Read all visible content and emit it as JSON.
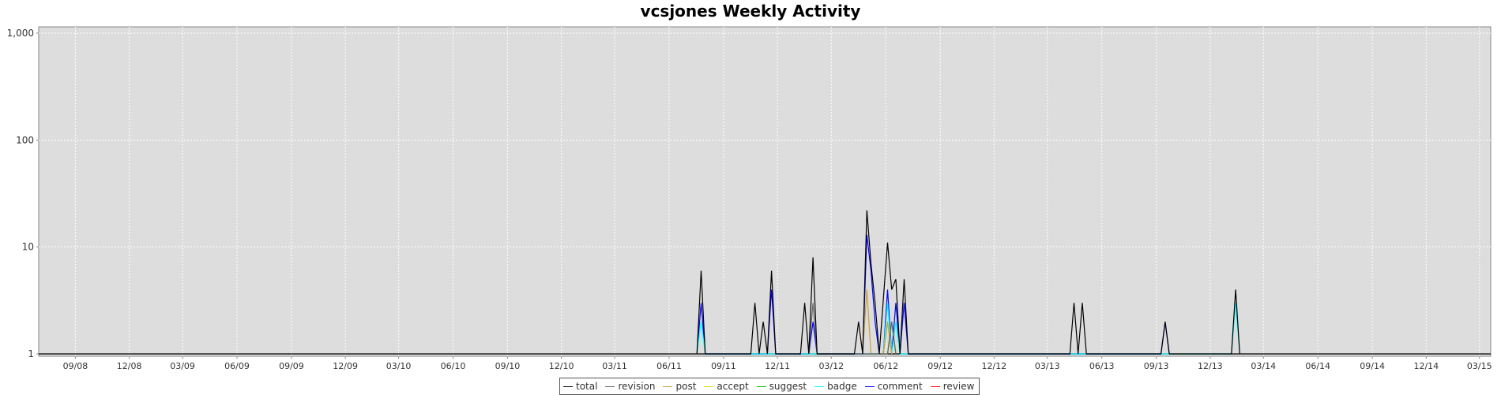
{
  "chart_data": {
    "type": "line",
    "title": "vcsjones Weekly Activity",
    "xlabel": "",
    "ylabel": "",
    "y_scale": "log",
    "ylim": [
      1,
      1000
    ],
    "y_ticks": [
      1,
      10,
      100,
      1000
    ],
    "y_tick_labels": [
      "1",
      "10",
      "100",
      "1,000"
    ],
    "xlim": [
      "2008-07-01",
      "2015-03-20"
    ],
    "x_ticks": [
      "2008-09-01",
      "2008-12-01",
      "2009-03-01",
      "2009-06-01",
      "2009-09-01",
      "2009-12-01",
      "2010-03-01",
      "2010-06-01",
      "2010-09-01",
      "2010-12-01",
      "2011-03-01",
      "2011-06-01",
      "2011-09-01",
      "2011-12-01",
      "2012-03-01",
      "2012-06-01",
      "2012-09-01",
      "2012-12-01",
      "2013-03-01",
      "2013-06-01",
      "2013-09-01",
      "2013-12-01",
      "2014-03-01",
      "2014-06-01",
      "2014-09-01",
      "2014-12-01",
      "2015-03-01"
    ],
    "x_tick_labels": [
      "09/08",
      "12/08",
      "03/09",
      "06/09",
      "09/09",
      "12/09",
      "03/10",
      "06/10",
      "09/10",
      "12/10",
      "03/11",
      "06/11",
      "09/11",
      "12/11",
      "03/12",
      "06/12",
      "09/12",
      "12/12",
      "03/13",
      "06/13",
      "09/13",
      "12/13",
      "03/14",
      "06/14",
      "09/14",
      "12/14",
      "03/15"
    ],
    "grid": true,
    "legend_position": "bottom-center",
    "background_color": "#dddddd",
    "series": [
      {
        "name": "total",
        "color": "#000000",
        "points": [
          [
            "2011-07-18",
            1
          ],
          [
            "2011-07-25",
            6
          ],
          [
            "2011-08-01",
            1
          ],
          [
            "2011-10-17",
            1
          ],
          [
            "2011-10-24",
            3
          ],
          [
            "2011-10-31",
            1
          ],
          [
            "2011-11-07",
            2
          ],
          [
            "2011-11-14",
            1
          ],
          [
            "2011-11-21",
            6
          ],
          [
            "2011-11-28",
            1
          ],
          [
            "2012-01-09",
            1
          ],
          [
            "2012-01-16",
            3
          ],
          [
            "2012-01-23",
            1
          ],
          [
            "2012-01-30",
            8
          ],
          [
            "2012-02-06",
            1
          ],
          [
            "2012-04-09",
            1
          ],
          [
            "2012-04-16",
            2
          ],
          [
            "2012-04-23",
            1
          ],
          [
            "2012-04-30",
            22
          ],
          [
            "2012-05-07",
            7
          ],
          [
            "2012-05-14",
            3
          ],
          [
            "2012-05-21",
            1
          ],
          [
            "2012-06-04",
            11
          ],
          [
            "2012-06-11",
            4
          ],
          [
            "2012-06-18",
            5
          ],
          [
            "2012-06-25",
            1
          ],
          [
            "2012-07-02",
            5
          ],
          [
            "2012-07-09",
            1
          ],
          [
            "2013-04-08",
            1
          ],
          [
            "2013-04-15",
            3
          ],
          [
            "2013-04-22",
            1
          ],
          [
            "2013-04-29",
            3
          ],
          [
            "2013-05-06",
            1
          ],
          [
            "2013-09-09",
            1
          ],
          [
            "2013-09-16",
            2
          ],
          [
            "2013-09-23",
            1
          ],
          [
            "2014-01-06",
            1
          ],
          [
            "2014-01-13",
            4
          ],
          [
            "2014-01-20",
            1
          ]
        ]
      },
      {
        "name": "revision",
        "color": "#666666",
        "points": [
          [
            "2012-01-23",
            1
          ],
          [
            "2012-01-30",
            3
          ],
          [
            "2012-02-06",
            1
          ],
          [
            "2012-06-04",
            1
          ],
          [
            "2012-06-11",
            2
          ],
          [
            "2012-06-18",
            1
          ]
        ]
      },
      {
        "name": "post",
        "color": "#c8a040",
        "points": [
          [
            "2012-04-23",
            1
          ],
          [
            "2012-04-30",
            4
          ],
          [
            "2012-05-07",
            1
          ],
          [
            "2012-05-28",
            1
          ],
          [
            "2012-06-04",
            2
          ],
          [
            "2012-06-11",
            1
          ]
        ]
      },
      {
        "name": "accept",
        "color": "#e0e000",
        "points": [
          [
            "2012-05-28",
            1
          ],
          [
            "2012-06-04",
            2
          ],
          [
            "2012-06-11",
            1
          ]
        ]
      },
      {
        "name": "suggest",
        "color": "#00c000",
        "points": [
          [
            "2012-06-04",
            1
          ],
          [
            "2012-06-11",
            2
          ],
          [
            "2012-06-18",
            1
          ]
        ]
      },
      {
        "name": "badge",
        "color": "#00ffff",
        "points": [
          [
            "2011-07-18",
            1
          ],
          [
            "2011-07-25",
            2
          ],
          [
            "2011-08-01",
            1
          ],
          [
            "2012-05-28",
            1
          ],
          [
            "2012-06-04",
            3
          ],
          [
            "2012-06-11",
            1
          ],
          [
            "2012-06-18",
            2
          ],
          [
            "2012-06-25",
            1
          ],
          [
            "2014-01-06",
            1
          ],
          [
            "2014-01-13",
            3
          ],
          [
            "2014-01-20",
            1
          ]
        ]
      },
      {
        "name": "comment",
        "color": "#0000ff",
        "points": [
          [
            "2011-07-18",
            1
          ],
          [
            "2011-07-25",
            3
          ],
          [
            "2011-08-01",
            1
          ],
          [
            "2011-11-14",
            1
          ],
          [
            "2011-11-21",
            4
          ],
          [
            "2011-11-28",
            1
          ],
          [
            "2012-01-23",
            1
          ],
          [
            "2012-01-30",
            2
          ],
          [
            "2012-02-06",
            1
          ],
          [
            "2012-04-23",
            1
          ],
          [
            "2012-04-30",
            13
          ],
          [
            "2012-05-07",
            6
          ],
          [
            "2012-05-14",
            2
          ],
          [
            "2012-05-21",
            1
          ],
          [
            "2012-05-28",
            1
          ],
          [
            "2012-06-04",
            4
          ],
          [
            "2012-06-11",
            1
          ],
          [
            "2012-06-18",
            3
          ],
          [
            "2012-06-25",
            1
          ],
          [
            "2012-07-02",
            3
          ],
          [
            "2012-07-09",
            1
          ],
          [
            "2013-09-09",
            1
          ],
          [
            "2013-09-16",
            2
          ],
          [
            "2013-09-23",
            1
          ]
        ]
      },
      {
        "name": "review",
        "color": "#ff0000",
        "points": []
      }
    ]
  }
}
